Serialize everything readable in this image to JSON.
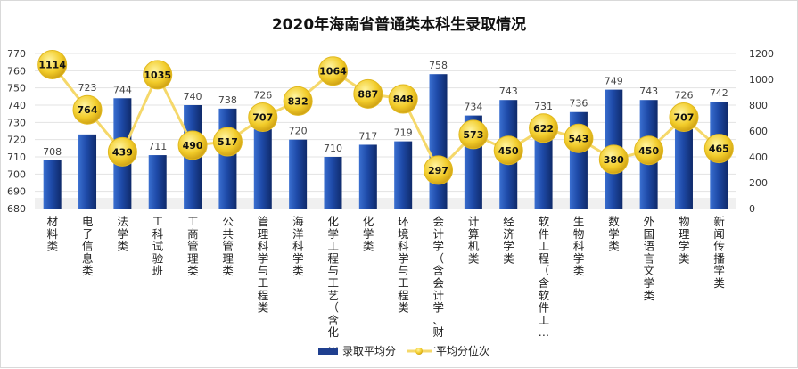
{
  "chart_data": {
    "type": "bar+line",
    "title": "2020年海南省普通类本科生录取情况",
    "categories": [
      "材料类",
      "电子信息类",
      "法学类",
      "工科试验班",
      "工商管理类",
      "公共管理类",
      "管理科学与工程类",
      "海洋科学类",
      "化学工程与工艺（含化…",
      "化学类",
      "环境科学与工程类",
      "会计学（含会计学、财…",
      "计算机类",
      "经济学类",
      "软件工程（含软件工…",
      "生物科学类",
      "数学类",
      "外国语言文学类",
      "物理学类",
      "新闻传播学类"
    ],
    "series": [
      {
        "name": "录取平均分",
        "type": "bar",
        "axis": "left",
        "color": "#1f3f8f",
        "values": [
          708,
          723,
          744,
          711,
          740,
          738,
          726,
          720,
          710,
          717,
          719,
          758,
          734,
          743,
          731,
          736,
          749,
          743,
          726,
          742
        ]
      },
      {
        "name": "平均分位次",
        "type": "line",
        "axis": "right",
        "color": "#f5d33a",
        "values": [
          1114,
          764,
          439,
          1035,
          490,
          517,
          707,
          832,
          1064,
          887,
          848,
          297,
          573,
          450,
          622,
          543,
          380,
          450,
          707,
          465
        ]
      }
    ],
    "left_axis": {
      "min": 680,
      "max": 770,
      "step": 10
    },
    "right_axis": {
      "min": 0,
      "max": 1200,
      "step": 200
    },
    "grid": true,
    "legend": "bottom"
  }
}
